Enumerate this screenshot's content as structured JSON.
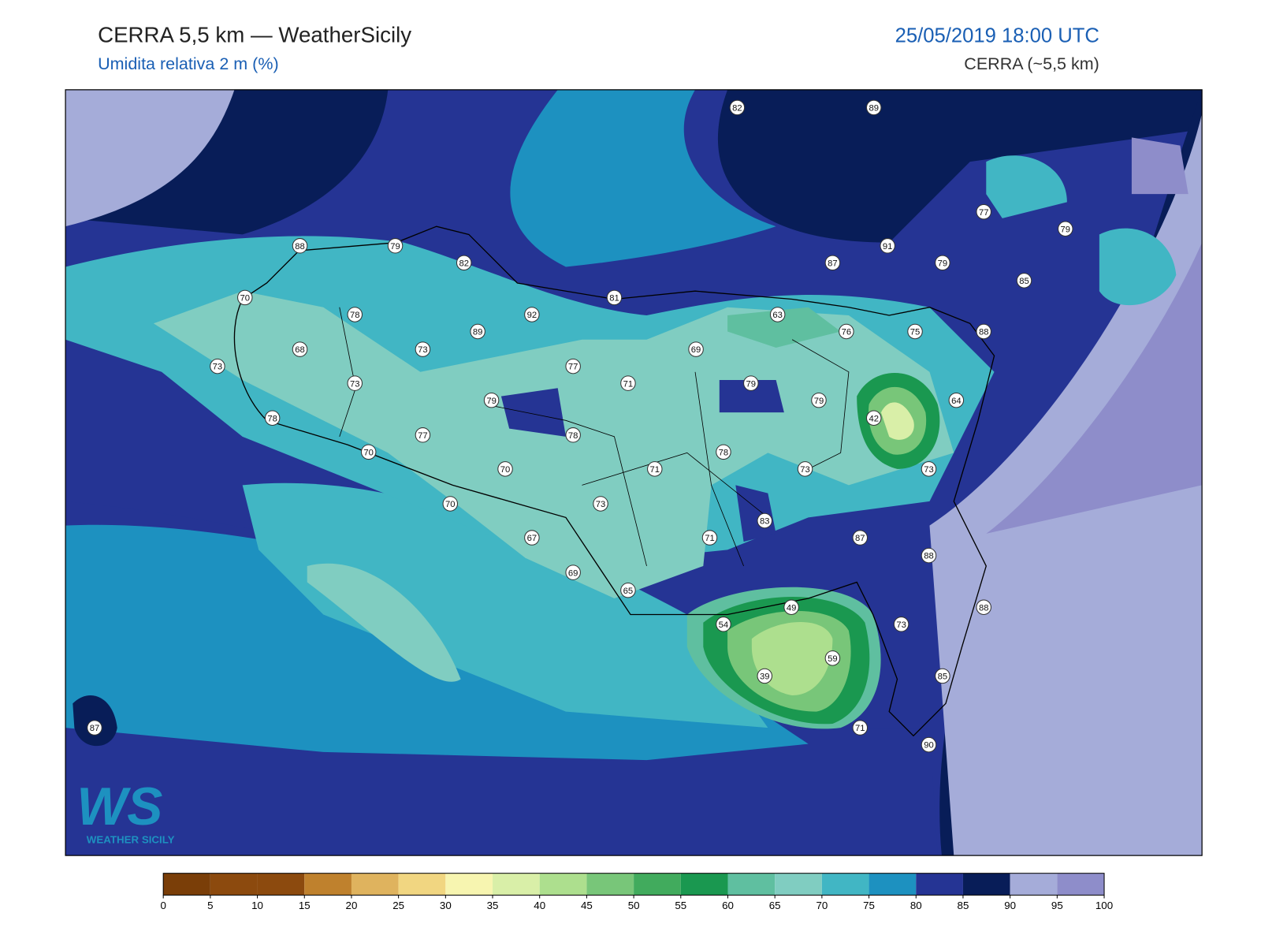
{
  "header": {
    "title": "CERRA 5,5 km — WeatherSicily",
    "subtitle": "Umidita relativa 2 m (%)",
    "datetime": "25/05/2019 18:00 UTC",
    "model": "CERRA (~5,5 km)"
  },
  "stations": [
    82,
    89,
    88,
    79,
    82,
    77,
    79,
    91,
    87,
    79,
    85,
    70,
    81,
    92,
    78,
    63,
    76,
    75,
    88,
    89,
    68,
    73,
    69,
    73,
    77,
    71,
    79,
    73,
    79,
    79,
    64,
    78,
    42,
    77,
    78,
    70,
    78,
    70,
    71,
    73,
    73,
    70,
    73,
    83,
    67,
    71,
    87,
    88,
    69,
    65,
    49,
    88,
    54,
    73,
    59,
    39,
    85,
    71,
    90,
    87
  ],
  "colorbar": {
    "ticks": [
      0,
      5,
      10,
      15,
      20,
      25,
      30,
      35,
      40,
      45,
      50,
      55,
      60,
      65,
      70,
      75,
      80,
      85,
      90,
      95,
      100
    ],
    "colors": [
      "#7a3e08",
      "#8c4a0e",
      "#8c4a0e",
      "#bf812d",
      "#dfb35e",
      "#f1d681",
      "#f7f5b0",
      "#d9efa8",
      "#addf8e",
      "#78c679",
      "#41ab5d",
      "#1a9850",
      "#5fbfa0",
      "#80cdc1",
      "#41b6c4",
      "#1d91c0",
      "#253494",
      "#081d58",
      "#a5acd9",
      "#8e8dca"
    ]
  },
  "logo": {
    "mark": "WS",
    "text": "WEATHER SICILY"
  }
}
